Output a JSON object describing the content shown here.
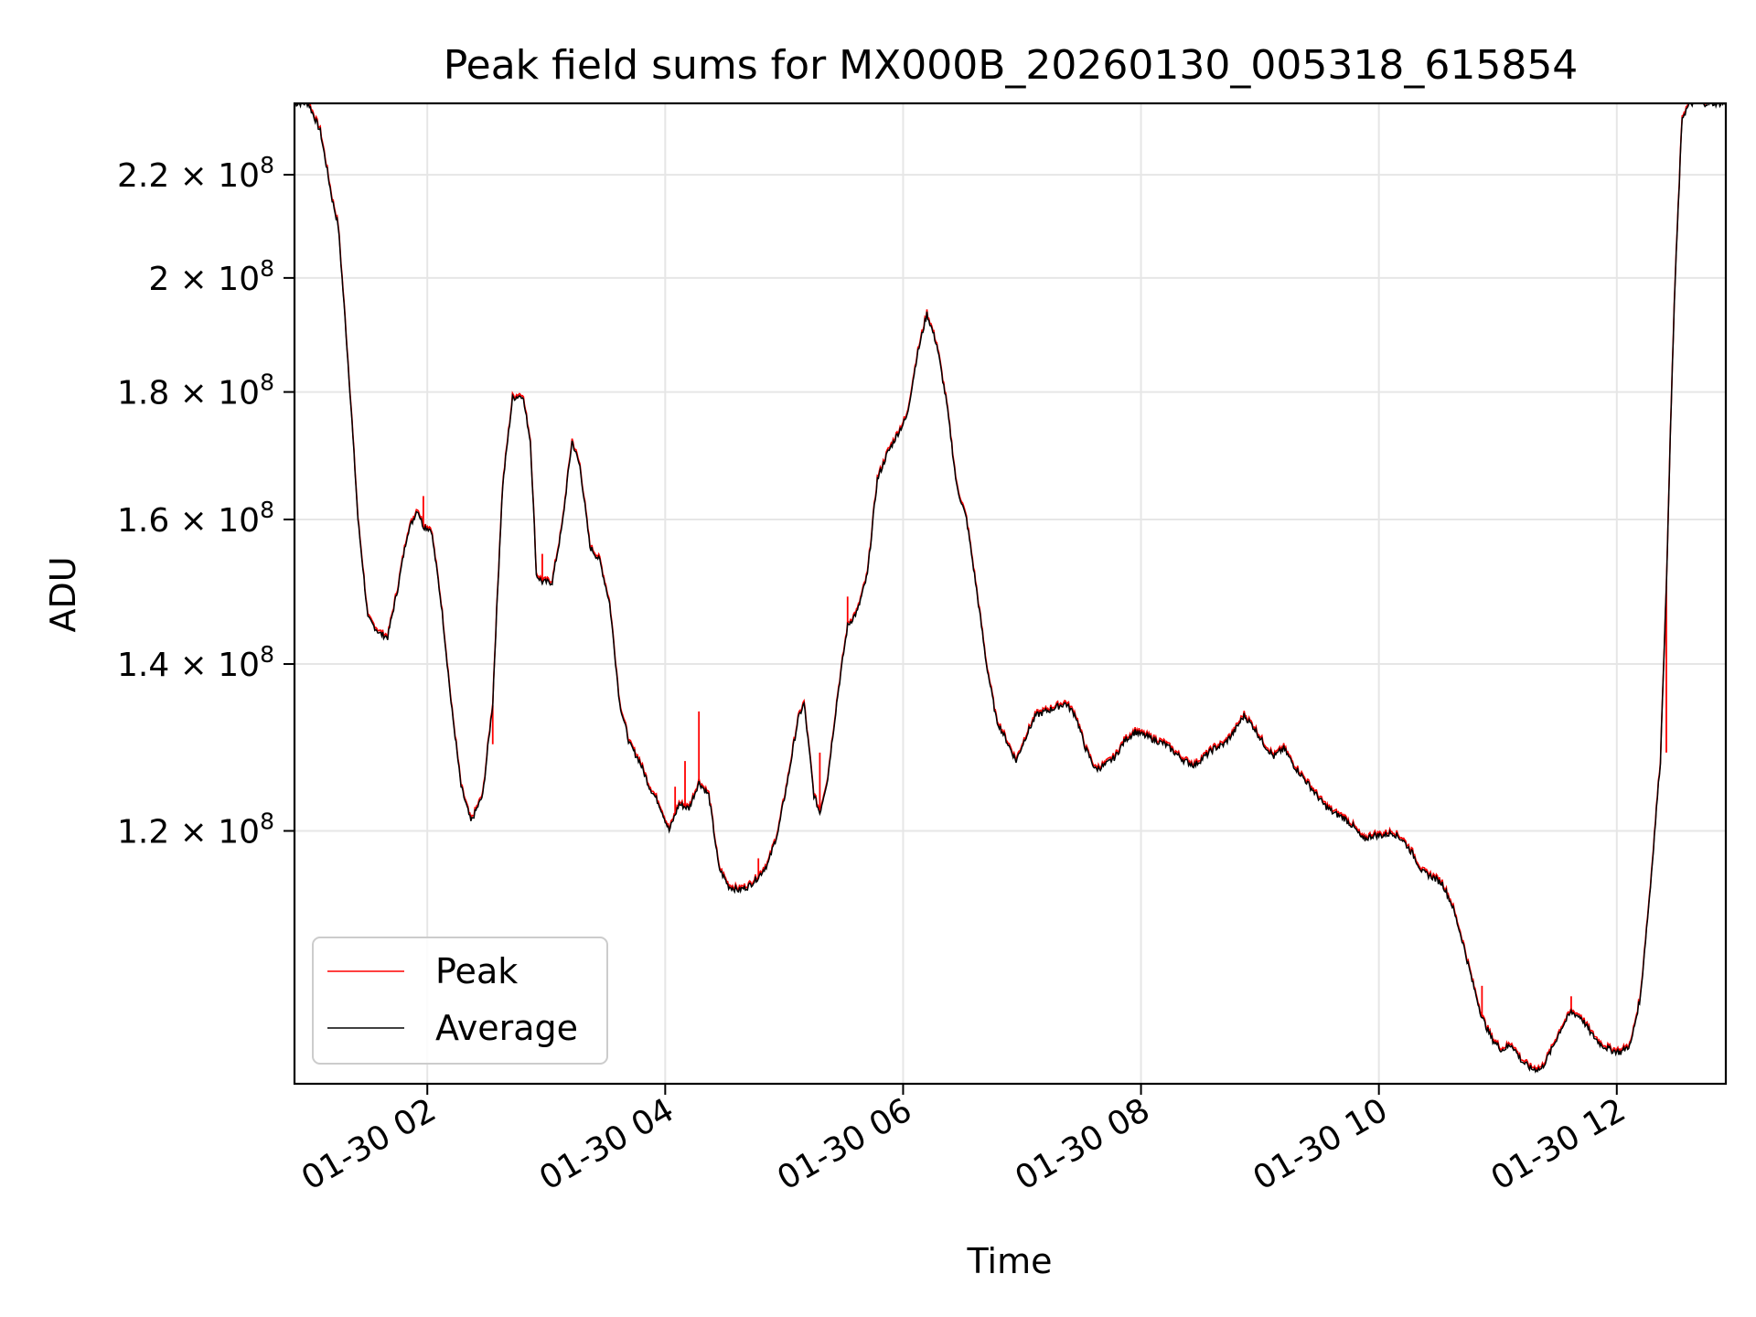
{
  "chart_data": {
    "type": "line",
    "title": "Peak field sums for MX000B_20260130_005318_615854",
    "xlabel": "Time",
    "ylabel": "ADU",
    "y_scale": "log",
    "xlim": [
      "2026-01-30 00:53",
      "2026-01-30 12:55"
    ],
    "ylim": [
      95000000,
      235000000
    ],
    "grid": true,
    "legend_position": "lower-left",
    "x_ticks": [
      "01-30 02",
      "01-30 04",
      "01-30 06",
      "01-30 08",
      "01-30 10",
      "01-30 12"
    ],
    "y_ticks": [
      {
        "value": 120000000,
        "mantissa": "1.2",
        "exponent": "8"
      },
      {
        "value": 140000000,
        "mantissa": "1.4",
        "exponent": "8"
      },
      {
        "value": 160000000,
        "mantissa": "1.6",
        "exponent": "8"
      },
      {
        "value": 180000000,
        "mantissa": "1.8",
        "exponent": "8"
      },
      {
        "value": 200000000,
        "mantissa": "2",
        "exponent": "8"
      },
      {
        "value": 220000000,
        "mantissa": "2.2",
        "exponent": "8"
      }
    ],
    "times_pattern": "2026-01-30 HH:MM",
    "series": [
      {
        "name": "Peak",
        "color": "#ff0000"
      },
      {
        "name": "Average",
        "color": "#000000"
      }
    ],
    "average_points": [
      [
        "00:53",
        235000000
      ],
      [
        "01:00",
        235000000
      ],
      [
        "01:06",
        229000000
      ],
      [
        "01:12",
        215000000
      ],
      [
        "01:15",
        210000000
      ],
      [
        "01:20",
        185000000
      ],
      [
        "01:25",
        160000000
      ],
      [
        "01:30",
        146000000
      ],
      [
        "01:36",
        144000000
      ],
      [
        "01:40",
        143500000
      ],
      [
        "01:45",
        150000000
      ],
      [
        "01:50",
        158000000
      ],
      [
        "01:55",
        161500000
      ],
      [
        "01:58",
        159000000
      ],
      [
        "02:02",
        158500000
      ],
      [
        "02:07",
        148000000
      ],
      [
        "02:12",
        135000000
      ],
      [
        "02:17",
        125000000
      ],
      [
        "02:22",
        121000000
      ],
      [
        "02:28",
        124000000
      ],
      [
        "02:33",
        135000000
      ],
      [
        "02:38",
        165000000
      ],
      [
        "02:43",
        179000000
      ],
      [
        "02:48",
        179500000
      ],
      [
        "02:52",
        172000000
      ],
      [
        "02:55",
        152000000
      ],
      [
        "02:58",
        151000000
      ],
      [
        "03:03",
        151000000
      ],
      [
        "03:08",
        159000000
      ],
      [
        "03:13",
        172000000
      ],
      [
        "03:17",
        168000000
      ],
      [
        "03:22",
        156000000
      ],
      [
        "03:27",
        154000000
      ],
      [
        "03:32",
        148000000
      ],
      [
        "03:37",
        135000000
      ],
      [
        "03:42",
        130000000
      ],
      [
        "03:47",
        128000000
      ],
      [
        "03:52",
        125000000
      ],
      [
        "03:57",
        123000000
      ],
      [
        "04:02",
        120000000
      ],
      [
        "04:07",
        123000000
      ],
      [
        "04:12",
        122500000
      ],
      [
        "04:17",
        125500000
      ],
      [
        "04:22",
        124000000
      ],
      [
        "04:27",
        116000000
      ],
      [
        "04:32",
        114000000
      ],
      [
        "04:37",
        113600000
      ],
      [
        "04:42",
        114000000
      ],
      [
        "04:47",
        115000000
      ],
      [
        "04:52",
        116500000
      ],
      [
        "04:57",
        120000000
      ],
      [
        "05:02",
        126000000
      ],
      [
        "05:07",
        133000000
      ],
      [
        "05:10",
        135000000
      ],
      [
        "05:15",
        124000000
      ],
      [
        "05:18",
        122000000
      ],
      [
        "05:22",
        126000000
      ],
      [
        "05:27",
        136000000
      ],
      [
        "05:32",
        145000000
      ],
      [
        "05:37",
        147000000
      ],
      [
        "05:42",
        152000000
      ],
      [
        "05:47",
        166000000
      ],
      [
        "05:52",
        170000000
      ],
      [
        "05:57",
        173000000
      ],
      [
        "06:02",
        176000000
      ],
      [
        "06:07",
        186000000
      ],
      [
        "06:12",
        193500000
      ],
      [
        "06:17",
        188000000
      ],
      [
        "06:22",
        178000000
      ],
      [
        "06:27",
        165000000
      ],
      [
        "06:32",
        160000000
      ],
      [
        "06:37",
        150000000
      ],
      [
        "06:42",
        140000000
      ],
      [
        "06:47",
        133000000
      ],
      [
        "06:52",
        130500000
      ],
      [
        "06:57",
        128000000
      ],
      [
        "07:02",
        131000000
      ],
      [
        "07:07",
        133500000
      ],
      [
        "07:12",
        134000000
      ],
      [
        "07:17",
        134500000
      ],
      [
        "07:22",
        135000000
      ],
      [
        "07:27",
        133500000
      ],
      [
        "07:32",
        129500000
      ],
      [
        "07:37",
        127000000
      ],
      [
        "07:42",
        127500000
      ],
      [
        "07:47",
        128500000
      ],
      [
        "07:52",
        130500000
      ],
      [
        "07:57",
        131500000
      ],
      [
        "08:02",
        131000000
      ],
      [
        "08:07",
        130500000
      ],
      [
        "08:12",
        130000000
      ],
      [
        "08:17",
        129000000
      ],
      [
        "08:22",
        128000000
      ],
      [
        "08:27",
        127500000
      ],
      [
        "08:32",
        128500000
      ],
      [
        "08:37",
        129500000
      ],
      [
        "08:42",
        130000000
      ],
      [
        "08:47",
        131500000
      ],
      [
        "08:52",
        133500000
      ],
      [
        "08:57",
        132000000
      ],
      [
        "09:02",
        130000000
      ],
      [
        "09:07",
        128500000
      ],
      [
        "09:12",
        129500000
      ],
      [
        "09:17",
        127500000
      ],
      [
        "09:22",
        126000000
      ],
      [
        "09:27",
        124500000
      ],
      [
        "09:32",
        123000000
      ],
      [
        "09:37",
        122000000
      ],
      [
        "09:42",
        121500000
      ],
      [
        "09:47",
        120500000
      ],
      [
        "09:52",
        119000000
      ],
      [
        "09:57",
        119500000
      ],
      [
        "10:02",
        119500000
      ],
      [
        "10:07",
        119800000
      ],
      [
        "10:12",
        119000000
      ],
      [
        "10:17",
        117500000
      ],
      [
        "10:22",
        115500000
      ],
      [
        "10:27",
        115000000
      ],
      [
        "10:32",
        114300000
      ],
      [
        "10:37",
        112000000
      ],
      [
        "10:42",
        108500000
      ],
      [
        "10:47",
        104500000
      ],
      [
        "10:52",
        101000000
      ],
      [
        "10:57",
        99000000
      ],
      [
        "11:02",
        98000000
      ],
      [
        "11:07",
        98500000
      ],
      [
        "11:12",
        97000000
      ],
      [
        "11:17",
        96300000
      ],
      [
        "11:22",
        96300000
      ],
      [
        "11:27",
        98000000
      ],
      [
        "11:32",
        100000000
      ],
      [
        "11:37",
        101500000
      ],
      [
        "11:42",
        101000000
      ],
      [
        "11:47",
        99500000
      ],
      [
        "11:52",
        98500000
      ],
      [
        "11:57",
        98000000
      ],
      [
        "12:02",
        97800000
      ],
      [
        "12:07",
        98500000
      ],
      [
        "12:12",
        103000000
      ],
      [
        "12:17",
        114000000
      ],
      [
        "12:22",
        128000000
      ],
      [
        "12:25",
        150000000
      ],
      [
        "12:29",
        195000000
      ],
      [
        "12:33",
        232000000
      ],
      [
        "12:37",
        235000000
      ],
      [
        "12:55",
        235000000
      ]
    ],
    "peak_spikes": [
      [
        "01:58",
        163500000
      ],
      [
        "02:33",
        130000000
      ],
      [
        "02:58",
        155000000
      ],
      [
        "03:45",
        129000000
      ],
      [
        "04:05",
        125000000
      ],
      [
        "04:10",
        128000000
      ],
      [
        "04:17",
        134000000
      ],
      [
        "04:47",
        117000000
      ],
      [
        "05:18",
        129000000
      ],
      [
        "05:32",
        149000000
      ],
      [
        "07:02",
        131000000
      ],
      [
        "10:52",
        104000000
      ],
      [
        "11:37",
        103000000
      ],
      [
        "12:25",
        129000000
      ]
    ]
  }
}
